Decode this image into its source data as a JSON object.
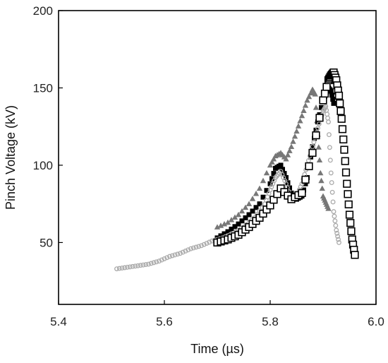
{
  "chart_data": {
    "type": "scatter",
    "title": "",
    "xlabel": "Time  (µs)",
    "ylabel": "Pinch  Voltage  (kV)",
    "xlim": [
      5.4,
      6.0
    ],
    "ylim": [
      10,
      200
    ],
    "xticks": [
      5.4,
      5.6,
      5.8,
      6.0
    ],
    "xtick_labels": [
      "5.4",
      "5.6",
      "5.8",
      "6.0"
    ],
    "yticks": [
      50,
      100,
      150,
      200
    ],
    "ytick_labels": [
      "50",
      "100",
      "150",
      "200"
    ],
    "grid": false,
    "legend": "none",
    "series": [
      {
        "marker": "triangle",
        "color": "#777777",
        "filled": true,
        "x": [
          5.7,
          5.72,
          5.74,
          5.76,
          5.78,
          5.8,
          5.81,
          5.82,
          5.83,
          5.84,
          5.85,
          5.86,
          5.87,
          5.88,
          5.885,
          5.89,
          5.895,
          5.9,
          5.905,
          5.91
        ],
        "y": [
          60,
          63,
          68,
          75,
          85,
          100,
          106,
          108,
          104,
          112,
          122,
          132,
          142,
          149,
          146,
          120,
          95,
          80,
          76,
          72
        ]
      },
      {
        "marker": "square",
        "color": "#000000",
        "filled": true,
        "x": [
          5.7,
          5.72,
          5.74,
          5.76,
          5.78,
          5.8,
          5.81,
          5.82,
          5.83,
          5.84,
          5.85,
          5.86,
          5.87,
          5.88,
          5.89,
          5.9,
          5.91,
          5.915,
          5.92
        ],
        "y": [
          53,
          57,
          62,
          68,
          75,
          88,
          98,
          100,
          92,
          82,
          78,
          80,
          92,
          112,
          128,
          142,
          150,
          148,
          140
        ]
      },
      {
        "marker": "circle",
        "color": "#aaaaaa",
        "filled": false,
        "x": [
          5.51,
          5.53,
          5.55,
          5.57,
          5.59,
          5.61,
          5.63,
          5.65,
          5.67,
          5.69,
          5.71,
          5.73,
          5.75,
          5.77,
          5.79,
          5.8,
          5.81,
          5.82,
          5.83,
          5.84,
          5.85,
          5.86,
          5.87,
          5.88,
          5.89,
          5.9,
          5.905,
          5.91,
          5.915,
          5.92,
          5.925,
          5.93
        ],
        "y": [
          33,
          34,
          35,
          36,
          38,
          41,
          43,
          46,
          48,
          51,
          53,
          56,
          60,
          66,
          75,
          84,
          92,
          96,
          88,
          78,
          80,
          88,
          100,
          112,
          124,
          135,
          138,
          128,
          95,
          70,
          58,
          50
        ]
      },
      {
        "marker": "square",
        "color": "#000000",
        "filled": false,
        "x": [
          5.7,
          5.72,
          5.74,
          5.76,
          5.78,
          5.8,
          5.82,
          5.84,
          5.86,
          5.88,
          5.9,
          5.91,
          5.915,
          5.92,
          5.925,
          5.93,
          5.935,
          5.94,
          5.945,
          5.95,
          5.955,
          5.96
        ],
        "y": [
          50,
          52,
          55,
          60,
          66,
          74,
          85,
          78,
          82,
          108,
          142,
          155,
          158,
          160,
          155,
          145,
          130,
          110,
          88,
          68,
          52,
          42
        ]
      }
    ]
  }
}
